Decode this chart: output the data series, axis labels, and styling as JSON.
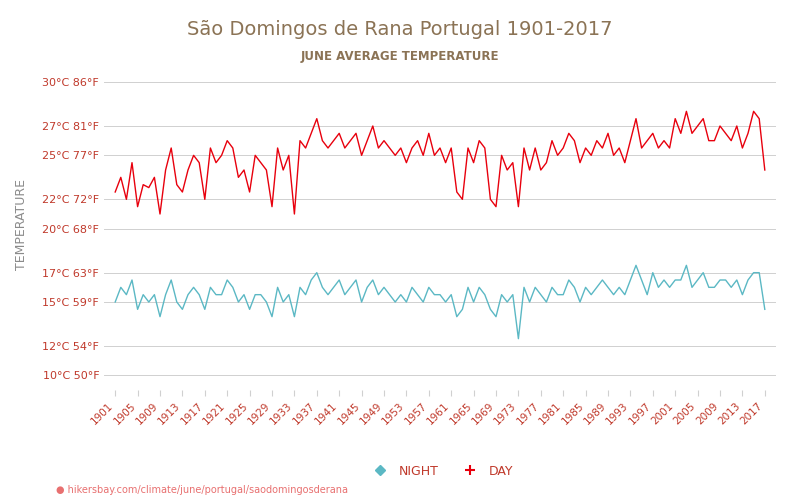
{
  "title": "São Domingos de Rana Portugal 1901-2017",
  "subtitle": "JUNE AVERAGE TEMPERATURE",
  "ylabel": "TEMPERATURE",
  "url_text": "hikersbay.com/climate/june/portugal/saodomingosderana",
  "years": [
    1901,
    1902,
    1903,
    1904,
    1905,
    1906,
    1907,
    1908,
    1909,
    1910,
    1911,
    1912,
    1913,
    1914,
    1915,
    1916,
    1917,
    1918,
    1919,
    1920,
    1921,
    1922,
    1923,
    1924,
    1925,
    1926,
    1927,
    1928,
    1929,
    1930,
    1931,
    1932,
    1933,
    1934,
    1935,
    1936,
    1937,
    1938,
    1939,
    1940,
    1941,
    1942,
    1943,
    1944,
    1945,
    1946,
    1947,
    1948,
    1949,
    1950,
    1951,
    1952,
    1953,
    1954,
    1955,
    1956,
    1957,
    1958,
    1959,
    1960,
    1961,
    1962,
    1963,
    1964,
    1965,
    1966,
    1967,
    1968,
    1969,
    1970,
    1971,
    1972,
    1973,
    1974,
    1975,
    1976,
    1977,
    1978,
    1979,
    1980,
    1981,
    1982,
    1983,
    1984,
    1985,
    1986,
    1987,
    1988,
    1989,
    1990,
    1991,
    1992,
    1993,
    1994,
    1995,
    1996,
    1997,
    1998,
    1999,
    2000,
    2001,
    2002,
    2003,
    2004,
    2005,
    2006,
    2007,
    2008,
    2009,
    2010,
    2011,
    2012,
    2013,
    2014,
    2015,
    2016,
    2017
  ],
  "day_temps": [
    22.5,
    23.5,
    22.0,
    24.5,
    21.5,
    23.0,
    22.8,
    23.5,
    21.0,
    24.0,
    25.5,
    23.0,
    22.5,
    24.0,
    25.0,
    24.5,
    22.0,
    25.5,
    24.5,
    25.0,
    26.0,
    25.5,
    23.5,
    24.0,
    22.5,
    25.0,
    24.5,
    24.0,
    21.5,
    25.5,
    24.0,
    25.0,
    21.0,
    26.0,
    25.5,
    26.5,
    27.5,
    26.0,
    25.5,
    26.0,
    26.5,
    25.5,
    26.0,
    26.5,
    25.0,
    26.0,
    27.0,
    25.5,
    26.0,
    25.5,
    25.0,
    25.5,
    24.5,
    25.5,
    26.0,
    25.0,
    26.5,
    25.0,
    25.5,
    24.5,
    25.5,
    22.5,
    22.0,
    25.5,
    24.5,
    26.0,
    25.5,
    22.0,
    21.5,
    25.0,
    24.0,
    24.5,
    21.5,
    25.5,
    24.0,
    25.5,
    24.0,
    24.5,
    26.0,
    25.0,
    25.5,
    26.5,
    26.0,
    24.5,
    25.5,
    25.0,
    26.0,
    25.5,
    26.5,
    25.0,
    25.5,
    24.5,
    26.0,
    27.5,
    25.5,
    26.0,
    26.5,
    25.5,
    26.0,
    25.5,
    27.5,
    26.5,
    28.0,
    26.5,
    27.0,
    27.5,
    26.0,
    26.0,
    27.0,
    26.5,
    26.0,
    27.0,
    25.5,
    26.5,
    28.0,
    27.5,
    24.0
  ],
  "night_temps": [
    15.0,
    16.0,
    15.5,
    16.5,
    14.5,
    15.5,
    15.0,
    15.5,
    14.0,
    15.5,
    16.5,
    15.0,
    14.5,
    15.5,
    16.0,
    15.5,
    14.5,
    16.0,
    15.5,
    15.5,
    16.5,
    16.0,
    15.0,
    15.5,
    14.5,
    15.5,
    15.5,
    15.0,
    14.0,
    16.0,
    15.0,
    15.5,
    14.0,
    16.0,
    15.5,
    16.5,
    17.0,
    16.0,
    15.5,
    16.0,
    16.5,
    15.5,
    16.0,
    16.5,
    15.0,
    16.0,
    16.5,
    15.5,
    16.0,
    15.5,
    15.0,
    15.5,
    15.0,
    16.0,
    15.5,
    15.0,
    16.0,
    15.5,
    15.5,
    15.0,
    15.5,
    14.0,
    14.5,
    16.0,
    15.0,
    16.0,
    15.5,
    14.5,
    14.0,
    15.5,
    15.0,
    15.5,
    12.5,
    16.0,
    15.0,
    16.0,
    15.5,
    15.0,
    16.0,
    15.5,
    15.5,
    16.5,
    16.0,
    15.0,
    16.0,
    15.5,
    16.0,
    16.5,
    16.0,
    15.5,
    16.0,
    15.5,
    16.5,
    17.5,
    16.5,
    15.5,
    17.0,
    16.0,
    16.5,
    16.0,
    16.5,
    16.5,
    17.5,
    16.0,
    16.5,
    17.0,
    16.0,
    16.0,
    16.5,
    16.5,
    16.0,
    16.5,
    15.5,
    16.5,
    17.0,
    17.0,
    14.5
  ],
  "yticks_c": [
    10,
    12,
    15,
    17,
    20,
    22,
    25,
    27,
    30
  ],
  "ytick_labels": [
    "10°C 50°F",
    "12°C 54°F",
    "15°C 59°F",
    "17°C 63°F",
    "20°C 68°F",
    "22°C 72°F",
    "25°C 77°F",
    "27°C 81°F",
    "30°C 86°F"
  ],
  "ylim": [
    9.0,
    31.5
  ],
  "day_color": "#e8000d",
  "night_color": "#5bb8c4",
  "title_color": "#8B7355",
  "subtitle_color": "#8B7355",
  "ylabel_color": "#8B8B8B",
  "ytick_color": "#c0392b",
  "xtick_color": "#c0392b",
  "grid_color": "#d0d0d0",
  "background_color": "#ffffff",
  "legend_night": "NIGHT",
  "legend_day": "DAY",
  "url_color": "#e87070",
  "xtick_years": [
    1901,
    1905,
    1909,
    1913,
    1917,
    1921,
    1925,
    1929,
    1933,
    1937,
    1941,
    1945,
    1949,
    1953,
    1957,
    1961,
    1965,
    1969,
    1973,
    1977,
    1981,
    1985,
    1989,
    1993,
    1997,
    2001,
    2005,
    2009,
    2013,
    2017
  ]
}
